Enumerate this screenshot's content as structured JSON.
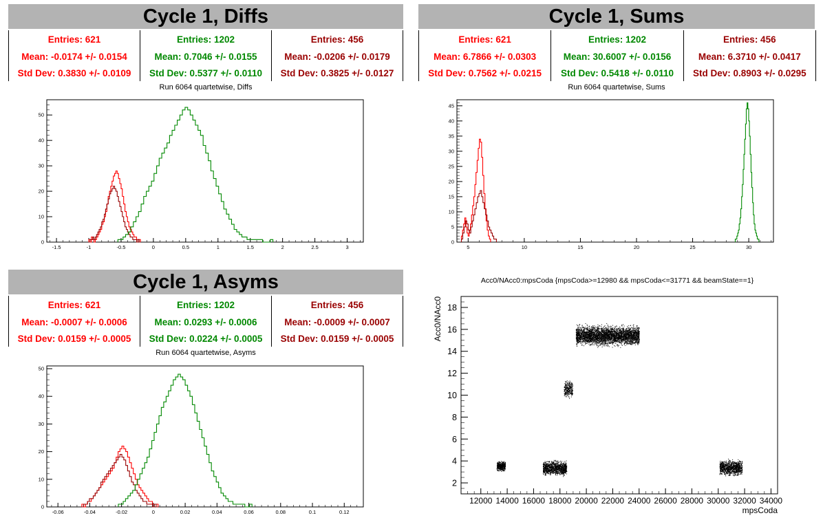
{
  "colors": {
    "red": "#ff0000",
    "green": "#008800",
    "darkred": "#990000",
    "black": "#000000",
    "titlebar": "#b3b3b3"
  },
  "panels": {
    "diffs": {
      "title": "Cycle 1, Diffs",
      "subtitle": "Run 6064 quartetwise, Diffs",
      "stats": [
        {
          "entries": "Entries: 621",
          "mean": "Mean: -0.0174 +/- 0.0154",
          "std": "Std Dev: 0.3830 +/- 0.0109"
        },
        {
          "entries": "Entries: 1202",
          "mean": "Mean: 0.7046 +/- 0.0155",
          "std": "Std Dev: 0.5377 +/- 0.0110"
        },
        {
          "entries": "Entries: 456",
          "mean": "Mean: -0.0206 +/- 0.0179",
          "std": "Std Dev: 0.3825 +/- 0.0127"
        }
      ]
    },
    "sums": {
      "title": "Cycle 1, Sums",
      "subtitle": "Run 6064 quartetwise, Sums",
      "stats": [
        {
          "entries": "Entries: 621",
          "mean": "Mean: 6.7866 +/- 0.0303",
          "std": "Std Dev: 0.7562 +/- 0.0215"
        },
        {
          "entries": "Entries: 1202",
          "mean": "Mean: 30.6007 +/- 0.0156",
          "std": "Std Dev: 0.5418 +/- 0.0110"
        },
        {
          "entries": "Entries: 456",
          "mean": "Mean: 6.3710 +/- 0.0417",
          "std": "Std Dev: 0.8903 +/- 0.0295"
        }
      ]
    },
    "asyms": {
      "title": "Cycle 1, Asyms",
      "subtitle": "Run 6064 quartetwise, Asyms",
      "stats": [
        {
          "entries": "Entries: 621",
          "mean": "Mean: -0.0007 +/- 0.0006",
          "std": "Std Dev: 0.0159 +/- 0.0005"
        },
        {
          "entries": "Entries: 1202",
          "mean": "Mean: 0.0293 +/- 0.0006",
          "std": "Std Dev: 0.0224 +/- 0.0005"
        },
        {
          "entries": "Entries: 456",
          "mean": "Mean: -0.0009 +/- 0.0007",
          "std": "Std Dev: 0.0159 +/- 0.0005"
        }
      ]
    },
    "scatter": {
      "title": "Acc0/NAcc0:mpsCoda {mpsCoda>=12980 && mpsCoda<=31771 && beamState==1}"
    }
  },
  "chart_data": [
    {
      "type": "histogram",
      "id": "diffs",
      "xlim": [
        -1.65,
        3.25
      ],
      "ylim": [
        0,
        56
      ],
      "xticks": [
        -1.5,
        -1,
        -0.5,
        0,
        0.5,
        1,
        1.5,
        2,
        2.5,
        3
      ],
      "xticklabels": [
        "-1.5",
        "-1",
        "-0.5",
        "0",
        "0.5",
        "1",
        "1.5",
        "2",
        "2.5",
        "3"
      ],
      "yticks": [
        0,
        10,
        20,
        30,
        40,
        50
      ],
      "series": [
        {
          "color": "red",
          "x_min": -1.0,
          "bin_width": 0.02,
          "counts": [
            1,
            0,
            2,
            1,
            0,
            1,
            2,
            3,
            4,
            5,
            7,
            8,
            10,
            12,
            15,
            18,
            20,
            22,
            24,
            26,
            27,
            28,
            27,
            25,
            23,
            21,
            18,
            15,
            12,
            10,
            8,
            6,
            5,
            4,
            3,
            2,
            2,
            1,
            1,
            1
          ]
        },
        {
          "color": "darkred",
          "x_min": -1.0,
          "bin_width": 0.02,
          "counts": [
            0,
            1,
            1,
            2,
            1,
            2,
            3,
            4,
            5,
            6,
            8,
            9,
            11,
            13,
            15,
            17,
            19,
            20,
            21,
            22,
            21,
            20,
            18,
            16,
            14,
            12,
            10,
            8,
            6,
            5,
            4,
            3,
            2,
            2,
            1,
            1,
            1,
            0,
            1,
            0
          ]
        },
        {
          "color": "green",
          "x_min": -0.55,
          "bin_width": 0.04,
          "counts": [
            1,
            1,
            2,
            3,
            4,
            6,
            8,
            10,
            12,
            15,
            18,
            20,
            22,
            24,
            27,
            30,
            33,
            35,
            37,
            39,
            42,
            44,
            46,
            48,
            50,
            52,
            53,
            52,
            50,
            48,
            46,
            44,
            42,
            38,
            35,
            32,
            28,
            25,
            22,
            19,
            16,
            13,
            11,
            9,
            7,
            5,
            4,
            3,
            2,
            2,
            1,
            1,
            1,
            1,
            1,
            1,
            0,
            0,
            0,
            1
          ]
        }
      ]
    },
    {
      "type": "histogram",
      "id": "sums",
      "xlim": [
        4.0,
        32.2
      ],
      "ylim": [
        0,
        47
      ],
      "xticks": [
        5,
        10,
        15,
        20,
        25,
        30
      ],
      "xticklabels": [
        "5",
        "10",
        "15",
        "20",
        "25",
        "30"
      ],
      "yticks": [
        0,
        5,
        10,
        15,
        20,
        25,
        30,
        35,
        40,
        45
      ],
      "series": [
        {
          "color": "red",
          "x_min": 4.4,
          "bin_width": 0.1,
          "counts": [
            2,
            4,
            6,
            8,
            5,
            3,
            2,
            4,
            6,
            9,
            12,
            15,
            19,
            23,
            27,
            31,
            34,
            33,
            28,
            22,
            16,
            11,
            7,
            4,
            2,
            1
          ]
        },
        {
          "color": "darkred",
          "x_min": 4.4,
          "bin_width": 0.12,
          "counts": [
            1,
            3,
            5,
            7,
            6,
            4,
            3,
            5,
            7,
            9,
            11,
            13,
            15,
            16,
            17,
            15,
            13,
            11,
            9,
            7,
            5,
            4,
            3,
            2,
            1,
            1
          ]
        },
        {
          "color": "green",
          "x_min": 28.8,
          "bin_width": 0.07,
          "counts": [
            1,
            1,
            2,
            3,
            4,
            6,
            8,
            11,
            15,
            19,
            24,
            29,
            34,
            39,
            44,
            46,
            44,
            40,
            35,
            29,
            23,
            18,
            13,
            9,
            6,
            4,
            3,
            2,
            1,
            1
          ]
        }
      ]
    },
    {
      "type": "histogram",
      "id": "asyms",
      "xlim": [
        -0.067,
        0.132
      ],
      "ylim": [
        0,
        51
      ],
      "xticks": [
        -0.06,
        -0.04,
        -0.02,
        0,
        0.02,
        0.04,
        0.06,
        0.08,
        0.1,
        0.12
      ],
      "xticklabels": [
        "-0.06",
        "-0.04",
        "-0.02",
        "0",
        "0.02",
        "0.04",
        "0.06",
        "0.08",
        "0.1",
        "0.12"
      ],
      "yticks": [
        0,
        10,
        20,
        30,
        40,
        50
      ],
      "series": [
        {
          "color": "red",
          "x_min": -0.045,
          "bin_width": 0.0012,
          "counts": [
            1,
            0,
            1,
            2,
            2,
            3,
            4,
            5,
            6,
            7,
            8,
            9,
            10,
            11,
            12,
            13,
            14,
            16,
            18,
            20,
            21,
            22,
            21,
            20,
            18,
            16,
            14,
            12,
            10,
            8,
            7,
            6,
            5,
            4,
            3,
            2,
            2,
            1,
            1,
            1
          ]
        },
        {
          "color": "darkred",
          "x_min": -0.045,
          "bin_width": 0.0012,
          "counts": [
            0,
            1,
            1,
            2,
            3,
            3,
            4,
            5,
            6,
            7,
            9,
            10,
            11,
            12,
            13,
            14,
            15,
            16,
            17,
            18,
            19,
            18,
            17,
            15,
            13,
            11,
            9,
            8,
            6,
            5,
            4,
            3,
            2,
            2,
            1,
            1,
            1,
            0,
            1,
            0
          ]
        },
        {
          "color": "green",
          "x_min": -0.022,
          "bin_width": 0.0015,
          "counts": [
            1,
            1,
            2,
            3,
            4,
            5,
            6,
            8,
            10,
            12,
            14,
            16,
            18,
            21,
            24,
            27,
            30,
            33,
            36,
            38,
            40,
            42,
            44,
            46,
            47,
            48,
            47,
            46,
            44,
            42,
            40,
            37,
            34,
            31,
            28,
            25,
            22,
            19,
            16,
            13,
            11,
            9,
            7,
            5,
            4,
            3,
            2,
            2,
            1,
            1,
            1,
            1,
            1,
            0,
            0,
            1
          ]
        }
      ]
    },
    {
      "type": "scatter",
      "id": "acc0",
      "title": "Acc0/NAcc0:mpsCoda {mpsCoda>=12980 && mpsCoda<=31771 && beamState==1}",
      "xlabel": "mpsCoda",
      "ylabel": "Acc0/NAcc0",
      "xlim": [
        10500,
        34500
      ],
      "ylim": [
        1,
        19
      ],
      "xticks": [
        12000,
        14000,
        16000,
        18000,
        20000,
        22000,
        24000,
        26000,
        28000,
        30000,
        32000,
        34000
      ],
      "yticks": [
        2,
        4,
        6,
        8,
        10,
        12,
        14,
        16,
        18
      ],
      "clusters": [
        {
          "x": [
            13200,
            13850
          ],
          "y": [
            3.0,
            4.1
          ],
          "n": 450
        },
        {
          "x": [
            16700,
            18500
          ],
          "y": [
            2.5,
            4.2
          ],
          "n": 1100
        },
        {
          "x": [
            18300,
            18950
          ],
          "y": [
            9.6,
            11.6
          ],
          "n": 280
        },
        {
          "x": [
            19200,
            24000
          ],
          "y": [
            14.3,
            16.6
          ],
          "n": 3600
        },
        {
          "x": [
            30100,
            31800
          ],
          "y": [
            2.5,
            4.3
          ],
          "n": 1000
        }
      ]
    }
  ]
}
